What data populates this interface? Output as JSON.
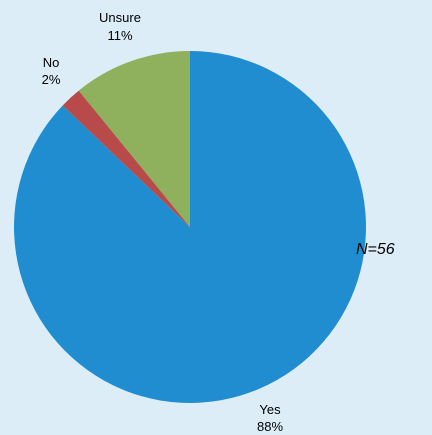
{
  "chart_data": {
    "type": "pie",
    "title": "",
    "slices": [
      {
        "label": "Yes",
        "percent_label": "88%",
        "value": 88,
        "color": "#1f8dd0"
      },
      {
        "label": "No",
        "percent_label": "2%",
        "value": 2,
        "color": "#b84a4a"
      },
      {
        "label": "Unsure",
        "percent_label": "11%",
        "value": 11,
        "color": "#8fb05c"
      }
    ],
    "annotation": "N=56",
    "start_direction": "12 o'clock, clockwise"
  },
  "background_color": "#dcedf8"
}
